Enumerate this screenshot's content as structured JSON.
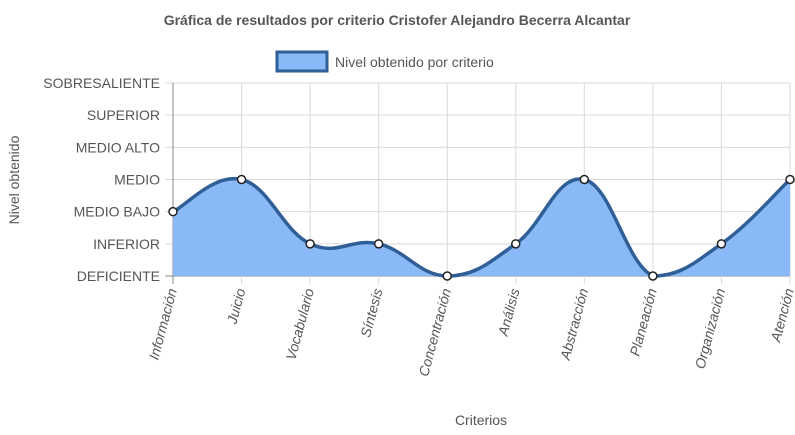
{
  "chart_data": {
    "type": "area",
    "title": "Gráfica de resultados por criterio Cristofer Alejandro Becerra Alcantar",
    "xlabel": "Criterios",
    "ylabel": "Nivel obtenido",
    "categories": [
      "Información",
      "Juicio",
      "Vocabulario",
      "Síntesis",
      "Concentración",
      "Análisis",
      "Abstracción",
      "Planeación",
      "Organización",
      "Atención"
    ],
    "y_levels": [
      "DEFICIENTE",
      "INFERIOR",
      "MEDIO BAJO",
      "MEDIO",
      "MEDIO ALTO",
      "SUPERIOR",
      "SOBRESALIENTE"
    ],
    "series": [
      {
        "name": "Nivel obtenido por criterio",
        "values": [
          2,
          3,
          1,
          1,
          0,
          1,
          3,
          0,
          1,
          3
        ]
      }
    ],
    "ylim": [
      0,
      6
    ],
    "grid": true,
    "legend_position": "top",
    "colors": {
      "fill": "#8ab9f7",
      "line": "#2f5f96",
      "point_fill": "#ffffff",
      "point_stroke": "#222222",
      "grid": "#d9d9d9",
      "axis": "#888888"
    }
  }
}
